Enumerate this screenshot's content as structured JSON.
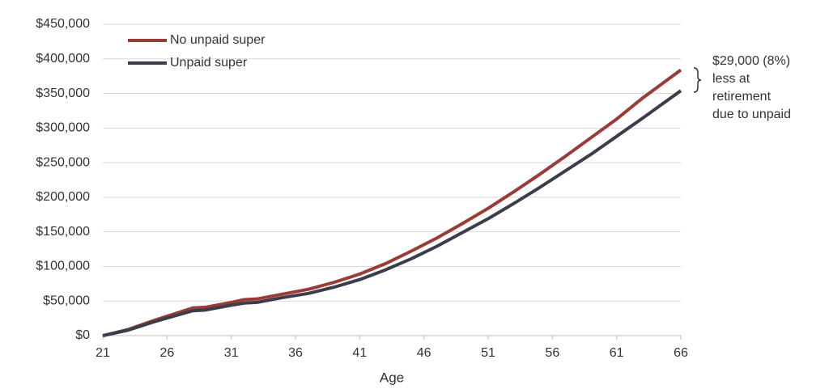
{
  "chart_data": {
    "type": "line",
    "x_label": "Age",
    "x": [
      21,
      23,
      25,
      28,
      29,
      31,
      32,
      33,
      35,
      37,
      39,
      41,
      43,
      45,
      47,
      49,
      51,
      53,
      55,
      57,
      59,
      61,
      63,
      66
    ],
    "series": [
      {
        "name": "No unpaid super",
        "color": "#9b3b36",
        "values": [
          0,
          9000,
          22000,
          40000,
          41000,
          48000,
          52000,
          53000,
          60000,
          67000,
          77000,
          89000,
          104000,
          122000,
          141000,
          162000,
          184000,
          208000,
          233000,
          259000,
          286000,
          313000,
          343000,
          384000
        ]
      },
      {
        "name": "Unpaid super",
        "color": "#3a3d4a",
        "values": [
          0,
          8000,
          20000,
          36000,
          37000,
          44000,
          47000,
          48000,
          55000,
          61000,
          70000,
          81000,
          95000,
          111000,
          129000,
          149000,
          169000,
          191000,
          214000,
          238000,
          262000,
          288000,
          314000,
          354000
        ]
      }
    ],
    "xlim": [
      21,
      66
    ],
    "xticks": [
      21,
      26,
      31,
      36,
      41,
      46,
      51,
      56,
      61,
      66
    ],
    "ylim": [
      0,
      450000
    ],
    "yticks": [
      {
        "value": 0,
        "label": "$0"
      },
      {
        "value": 50000,
        "label": "$50,000"
      },
      {
        "value": 100000,
        "label": "$100,000"
      },
      {
        "value": 150000,
        "label": "$150,000"
      },
      {
        "value": 200000,
        "label": "$200,000"
      },
      {
        "value": 250000,
        "label": "$250,000"
      },
      {
        "value": 300000,
        "label": "$300,000"
      },
      {
        "value": 350000,
        "label": "$350,000"
      },
      {
        "value": 400000,
        "label": "$400,000"
      },
      {
        "value": 450000,
        "label": "$450,000"
      }
    ],
    "grid": true,
    "legend_position": "top-left",
    "annotation": [
      "$29,000 (8%)",
      "less at",
      "retirement",
      "due to unpaid"
    ]
  }
}
